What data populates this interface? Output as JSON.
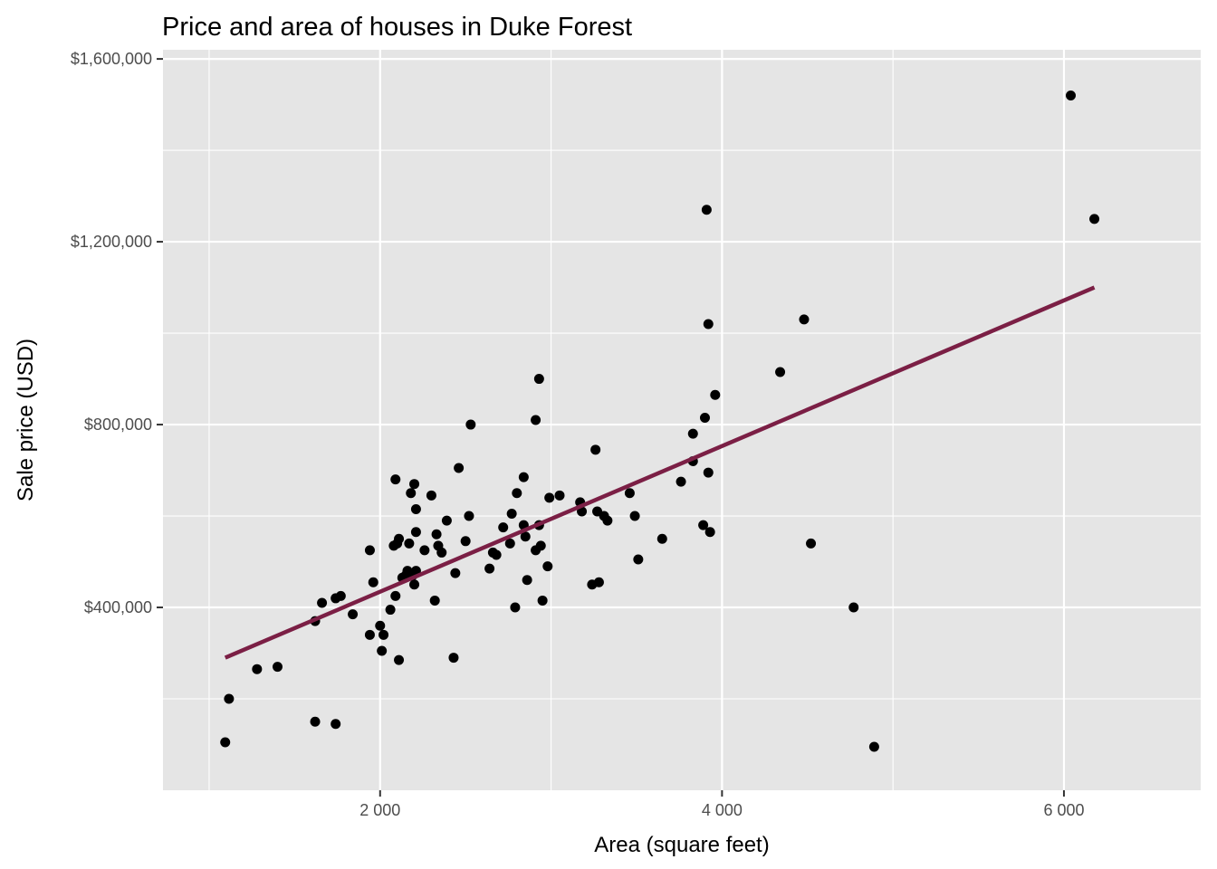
{
  "chart_data": {
    "type": "scatter",
    "title": "Price and area of houses in Duke Forest",
    "xlabel": "Area (square feet)",
    "ylabel": "Sale price (USD)",
    "xlim": [
      730,
      6800
    ],
    "ylim": [
      0,
      1620000
    ],
    "x_ticks": [
      2000,
      4000,
      6000
    ],
    "x_tick_labels": [
      "2 000",
      "4 000",
      "6 000"
    ],
    "y_ticks": [
      400000,
      800000,
      1200000,
      1600000
    ],
    "y_tick_labels": [
      "$400,000",
      "$800,000",
      "$1,200,000",
      "$1,600,000"
    ],
    "grid": true,
    "legend": "none",
    "colors": {
      "panel": "#e5e5e5",
      "grid": "#ffffff",
      "points": "#000000",
      "fit_line": "#7b1f45"
    },
    "fit_line": {
      "x": [
        1094,
        6178
      ],
      "y": [
        290000,
        1100000
      ]
    },
    "points": [
      {
        "x": 1094,
        "y": 105000
      },
      {
        "x": 1116,
        "y": 200000
      },
      {
        "x": 1280,
        "y": 265000
      },
      {
        "x": 1400,
        "y": 270000
      },
      {
        "x": 1620,
        "y": 150000
      },
      {
        "x": 1740,
        "y": 145000
      },
      {
        "x": 1620,
        "y": 370000
      },
      {
        "x": 1660,
        "y": 410000
      },
      {
        "x": 1740,
        "y": 420000
      },
      {
        "x": 1770,
        "y": 425000
      },
      {
        "x": 1840,
        "y": 385000
      },
      {
        "x": 1940,
        "y": 525000
      },
      {
        "x": 1940,
        "y": 340000
      },
      {
        "x": 1960,
        "y": 455000
      },
      {
        "x": 2000,
        "y": 360000
      },
      {
        "x": 2010,
        "y": 305000
      },
      {
        "x": 2020,
        "y": 340000
      },
      {
        "x": 2060,
        "y": 395000
      },
      {
        "x": 2080,
        "y": 535000
      },
      {
        "x": 2090,
        "y": 425000
      },
      {
        "x": 2090,
        "y": 680000
      },
      {
        "x": 2100,
        "y": 540000
      },
      {
        "x": 2110,
        "y": 550000
      },
      {
        "x": 2110,
        "y": 285000
      },
      {
        "x": 2130,
        "y": 465000
      },
      {
        "x": 2150,
        "y": 470000
      },
      {
        "x": 2160,
        "y": 480000
      },
      {
        "x": 2170,
        "y": 540000
      },
      {
        "x": 2180,
        "y": 650000
      },
      {
        "x": 2190,
        "y": 470000
      },
      {
        "x": 2200,
        "y": 450000
      },
      {
        "x": 2200,
        "y": 670000
      },
      {
        "x": 2210,
        "y": 615000
      },
      {
        "x": 2210,
        "y": 565000
      },
      {
        "x": 2210,
        "y": 480000
      },
      {
        "x": 2260,
        "y": 525000
      },
      {
        "x": 2300,
        "y": 645000
      },
      {
        "x": 2320,
        "y": 415000
      },
      {
        "x": 2330,
        "y": 560000
      },
      {
        "x": 2340,
        "y": 535000
      },
      {
        "x": 2360,
        "y": 520000
      },
      {
        "x": 2390,
        "y": 590000
      },
      {
        "x": 2430,
        "y": 290000
      },
      {
        "x": 2440,
        "y": 475000
      },
      {
        "x": 2460,
        "y": 705000
      },
      {
        "x": 2500,
        "y": 545000
      },
      {
        "x": 2520,
        "y": 600000
      },
      {
        "x": 2530,
        "y": 800000
      },
      {
        "x": 2640,
        "y": 485000
      },
      {
        "x": 2660,
        "y": 520000
      },
      {
        "x": 2680,
        "y": 515000
      },
      {
        "x": 2720,
        "y": 575000
      },
      {
        "x": 2760,
        "y": 540000
      },
      {
        "x": 2770,
        "y": 605000
      },
      {
        "x": 2790,
        "y": 400000
      },
      {
        "x": 2800,
        "y": 650000
      },
      {
        "x": 2840,
        "y": 580000
      },
      {
        "x": 2840,
        "y": 685000
      },
      {
        "x": 2850,
        "y": 555000
      },
      {
        "x": 2860,
        "y": 460000
      },
      {
        "x": 2910,
        "y": 810000
      },
      {
        "x": 2910,
        "y": 525000
      },
      {
        "x": 2930,
        "y": 580000
      },
      {
        "x": 2930,
        "y": 900000
      },
      {
        "x": 2940,
        "y": 535000
      },
      {
        "x": 2950,
        "y": 415000
      },
      {
        "x": 2980,
        "y": 490000
      },
      {
        "x": 2990,
        "y": 640000
      },
      {
        "x": 3050,
        "y": 645000
      },
      {
        "x": 3170,
        "y": 630000
      },
      {
        "x": 3180,
        "y": 610000
      },
      {
        "x": 3240,
        "y": 450000
      },
      {
        "x": 3260,
        "y": 745000
      },
      {
        "x": 3270,
        "y": 610000
      },
      {
        "x": 3280,
        "y": 455000
      },
      {
        "x": 3310,
        "y": 600000
      },
      {
        "x": 3330,
        "y": 590000
      },
      {
        "x": 3460,
        "y": 650000
      },
      {
        "x": 3490,
        "y": 600000
      },
      {
        "x": 3510,
        "y": 505000
      },
      {
        "x": 3650,
        "y": 550000
      },
      {
        "x": 3760,
        "y": 675000
      },
      {
        "x": 3830,
        "y": 780000
      },
      {
        "x": 3830,
        "y": 720000
      },
      {
        "x": 3890,
        "y": 580000
      },
      {
        "x": 3900,
        "y": 815000
      },
      {
        "x": 3910,
        "y": 1270000
      },
      {
        "x": 3920,
        "y": 1020000
      },
      {
        "x": 3920,
        "y": 695000
      },
      {
        "x": 3930,
        "y": 565000
      },
      {
        "x": 3960,
        "y": 865000
      },
      {
        "x": 4340,
        "y": 915000
      },
      {
        "x": 4480,
        "y": 1030000
      },
      {
        "x": 4520,
        "y": 540000
      },
      {
        "x": 4770,
        "y": 400000
      },
      {
        "x": 4890,
        "y": 95000
      },
      {
        "x": 6040,
        "y": 1520000
      },
      {
        "x": 6178,
        "y": 1250000
      }
    ]
  }
}
